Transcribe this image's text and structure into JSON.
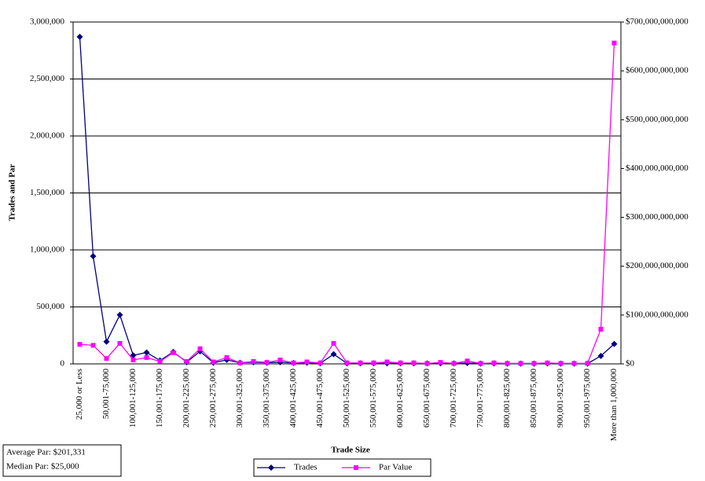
{
  "chart_data": {
    "type": "line",
    "y_label": "Trades and Par",
    "x_label": "Trade Size",
    "categories": [
      "25,000  or Less",
      null,
      "50,001-75,000",
      null,
      "100,001-125,000",
      null,
      "150,001-175,000",
      null,
      "200,001-225,000",
      null,
      "250,001-275,000",
      null,
      "300,001-325,000",
      null,
      "350,001-375,000",
      null,
      "400,001-425,000",
      null,
      "450,001-475,000",
      null,
      "500,001-525,000",
      null,
      "550,001-575,000",
      null,
      "600,001-625,000",
      null,
      "650,001-675,000",
      null,
      "700,001-725,000",
      null,
      "750,001-775,000",
      null,
      "800,001-825,000",
      null,
      "850,001-875,000",
      null,
      "900,001-925,000",
      null,
      "950,001-975,000",
      null,
      "More than 1,000,000"
    ],
    "series": [
      {
        "name": "Trades",
        "color": "#000080",
        "marker": "diamond",
        "values": [
          2870000,
          945000,
          195000,
          430000,
          75000,
          100000,
          30000,
          105000,
          15000,
          110000,
          10000,
          35000,
          10000,
          15000,
          10000,
          15000,
          8000,
          10000,
          5000,
          85000,
          5000,
          5000,
          5000,
          5000,
          5000,
          5000,
          4000,
          5000,
          4000,
          8000,
          3000,
          4000,
          3000,
          3000,
          3000,
          4000,
          3000,
          3000,
          3000,
          70000,
          175000
        ]
      },
      {
        "name": "Par Value",
        "color": "#ff00ff",
        "marker": "square",
        "axis": "y2",
        "values": [
          40000000000,
          38000000000,
          11000000000,
          42000000000,
          8000000000,
          13000000000,
          5000000000,
          23000000000,
          5000000000,
          31000000000,
          4000000000,
          13000000000,
          2000000000,
          5000000000,
          3000000000,
          8000000000,
          2000000000,
          4000000000,
          2000000000,
          42000000000,
          2000000000,
          2000000000,
          2000000000,
          4000000000,
          2000000000,
          2000000000,
          1000000000,
          3000000000,
          1000000000,
          6000000000,
          1000000000,
          2000000000,
          1000000000,
          1000000000,
          1000000000,
          2000000000,
          1000000000,
          1000000000,
          1000000000,
          71000000000,
          657000000000
        ]
      }
    ],
    "ylim": [
      0,
      3000000
    ],
    "yticks": [
      0,
      {
        "value": 500000,
        "label": "500,000"
      },
      {
        "value": 1000000,
        "label": "1,000,000"
      },
      {
        "value": 1500000,
        "label": "1,500,000"
      },
      {
        "value": 2000000,
        "label": "2,000,000"
      },
      {
        "value": 2500000,
        "label": "2,500,000"
      },
      {
        "value": 3000000,
        "label": "3,000,000"
      }
    ],
    "y2lim": [
      0,
      700000000000
    ],
    "y2ticks": [
      {
        "value": 0,
        "label": "$0"
      },
      {
        "value": 100000000000,
        "label": "$100,000,000,000"
      },
      {
        "value": 200000000000,
        "label": "$200,000,000,000"
      },
      {
        "value": 300000000000,
        "label": "$300,000,000,000"
      },
      {
        "value": 400000000000,
        "label": "$400,000,000,000"
      },
      {
        "value": 500000000000,
        "label": "$500,000,000,000"
      },
      {
        "value": 600000000000,
        "label": "$600,000,000,000"
      },
      {
        "value": 700000000000,
        "label": "$700,000,000,000"
      }
    ],
    "grid": true,
    "legend": "bottom",
    "annotations": [
      "Average Par:  $201,331",
      "Median Par:  $25,000"
    ]
  }
}
